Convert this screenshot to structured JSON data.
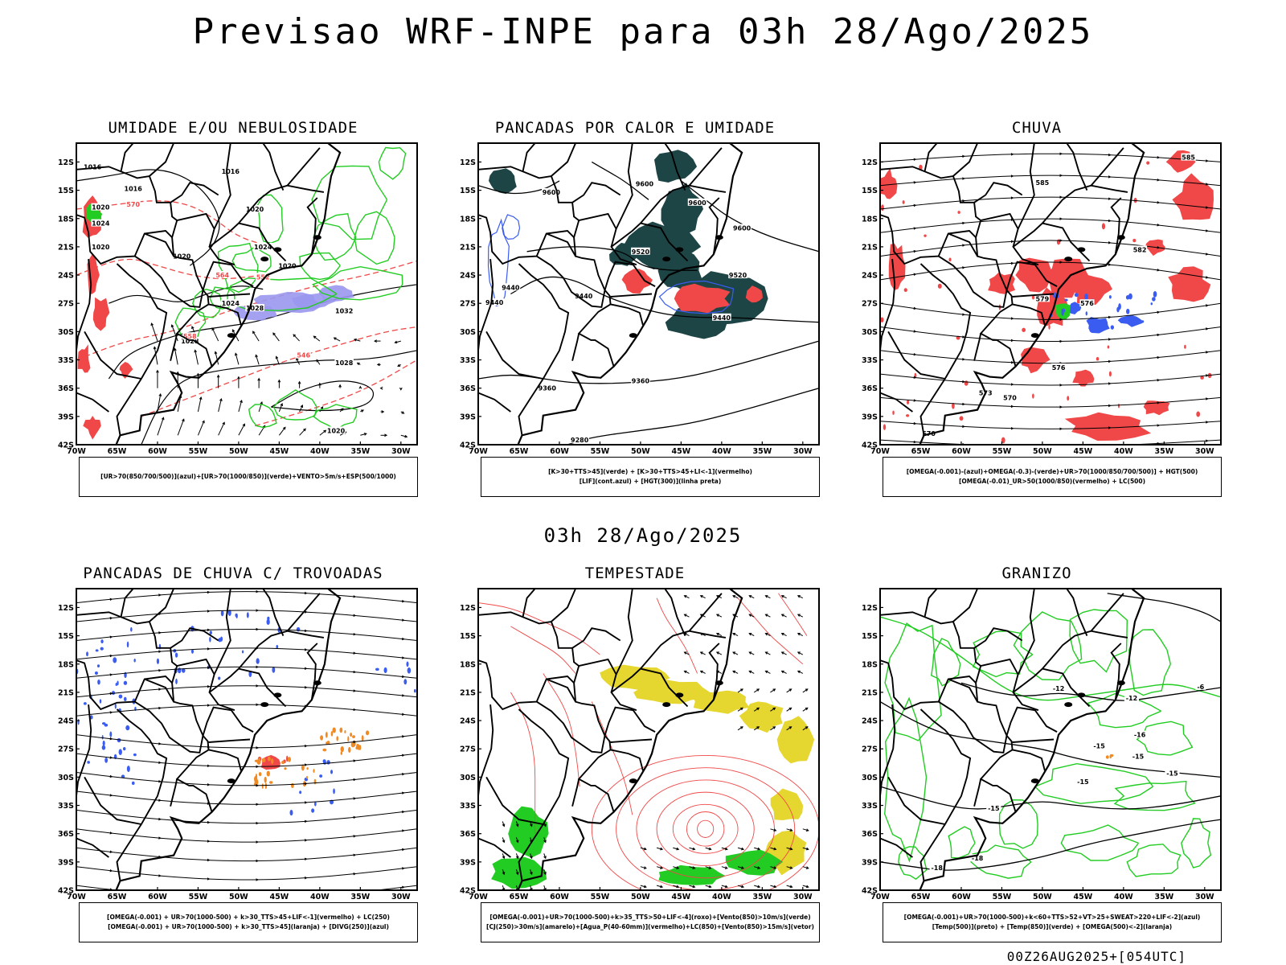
{
  "header": {
    "title": "Previsao WRF-INPE  para 03h 28/Ago/2025"
  },
  "middle": {
    "subtitle": "03h 28/Ago/2025"
  },
  "footer": {
    "run": "00Z26AUG2025+[054UTC]"
  },
  "colors": {
    "blue": "#3a5cf0",
    "green": "#22cc22",
    "red": "#f04848",
    "dark_teal": "#1e4546",
    "yellow": "#e6d630",
    "orange": "#f08a24",
    "lavender": "#9a98ee",
    "purple": "#8060d8"
  },
  "chart_data": [
    {
      "id": "umidade",
      "type": "map",
      "title": "UMIDADE E/OU NEBULOSIDADE",
      "xlim": [
        -70,
        -28
      ],
      "ylim": [
        -42,
        -10
      ],
      "x_ticks": [
        "70W",
        "65W",
        "60W",
        "55W",
        "50W",
        "45W",
        "40W",
        "35W",
        "30W"
      ],
      "y_ticks": [
        "12S",
        "15S",
        "18S",
        "21S",
        "24S",
        "27S",
        "30S",
        "33S",
        "36S",
        "39S",
        "42S"
      ],
      "legend": [
        "[UR>70(850/700/500)](azul)+[UR>70(1000/850)](verde)+VENTO>5m/s+ESP(500/1000)"
      ],
      "contour_labels": [
        "1016",
        "1016",
        "1020",
        "1024",
        "1020",
        "1020",
        "1016",
        "1020",
        "1024",
        "1020",
        "1024",
        "1028",
        "1028",
        "1032",
        "1028",
        "1020",
        "570",
        "564",
        "552",
        "558",
        "546"
      ]
    },
    {
      "id": "pancadas_calor",
      "type": "map",
      "title": "PANCADAS POR CALOR E UMIDADE",
      "xlim": [
        -70,
        -28
      ],
      "ylim": [
        -42,
        -10
      ],
      "x_ticks": [
        "70W",
        "65W",
        "60W",
        "55W",
        "50W",
        "45W",
        "40W",
        "35W",
        "30W"
      ],
      "y_ticks": [
        "12S",
        "15S",
        "18S",
        "21S",
        "24S",
        "27S",
        "30S",
        "33S",
        "36S",
        "39S",
        "42S"
      ],
      "legend": [
        "[K>30+TTS>45](verde) + [K>30+TTS>45+LI<-1](vermelho)",
        "[LIF](cont.azul) + [HGT(300)](linha preta)"
      ],
      "contour_labels": [
        "9600",
        "9600",
        "9600",
        "9600",
        "9520",
        "9520",
        "9440",
        "9440",
        "9440",
        "9440",
        "9360",
        "9360",
        "9280"
      ]
    },
    {
      "id": "chuva",
      "type": "map",
      "title": "CHUVA",
      "xlim": [
        -70,
        -28
      ],
      "ylim": [
        -42,
        -10
      ],
      "x_ticks": [
        "70W",
        "65W",
        "60W",
        "55W",
        "50W",
        "45W",
        "40W",
        "35W",
        "30W"
      ],
      "y_ticks": [
        "12S",
        "15S",
        "18S",
        "21S",
        "24S",
        "27S",
        "30S",
        "33S",
        "36S",
        "39S",
        "42S"
      ],
      "legend": [
        "[OMEGA(-0.001)-(azul)+OMEGA(-0.3)-(verde)+UR>70(1000/850/700/500)] + HGT(500)",
        "[OMEGA(-0.01)_UR>50(1000/850)(vermelho) + LC(500)"
      ],
      "contour_labels": [
        "585",
        "585",
        "582",
        "579",
        "576",
        "576",
        "573",
        "570",
        "570"
      ]
    },
    {
      "id": "trovoadas",
      "type": "map",
      "title": "PANCADAS DE CHUVA C/ TROVOADAS",
      "xlim": [
        -70,
        -28
      ],
      "ylim": [
        -42,
        -10
      ],
      "x_ticks": [
        "70W",
        "65W",
        "60W",
        "55W",
        "50W",
        "45W",
        "40W",
        "35W",
        "30W"
      ],
      "y_ticks": [
        "12S",
        "15S",
        "18S",
        "21S",
        "24S",
        "27S",
        "30S",
        "33S",
        "36S",
        "39S",
        "42S"
      ],
      "legend": [
        "[OMEGA(-0.001) + UR>70(1000-500) + k>30_TTS>45+LIF<-1](vermelho) + LC(250)",
        "[OMEGA(-0.001) + UR>70(1000-500) + k>30_TTS>45](laranja) + [DIVG(250)](azul)"
      ],
      "contour_labels": []
    },
    {
      "id": "tempestade",
      "type": "map",
      "title": "TEMPESTADE",
      "xlim": [
        -70,
        -28
      ],
      "ylim": [
        -42,
        -10
      ],
      "x_ticks": [
        "70W",
        "65W",
        "60W",
        "55W",
        "50W",
        "45W",
        "40W",
        "35W",
        "30W"
      ],
      "y_ticks": [
        "12S",
        "15S",
        "18S",
        "21S",
        "24S",
        "27S",
        "30S",
        "33S",
        "36S",
        "39S",
        "42S"
      ],
      "legend": [
        "[OMEGA(-0.001)+UR>70(1000-500)+k>35_TTS>50+LIF<-4](roxo)+[Vento(850)>10m/s](verde)",
        "[CJ(250)>30m/s](amarelo)+[Agua_P(40-60mm)](vermelho)+LC(850)+[Vento(850)>15m/s](vetor)"
      ],
      "contour_labels": []
    },
    {
      "id": "granizo",
      "type": "map",
      "title": "GRANIZO",
      "xlim": [
        -70,
        -28
      ],
      "ylim": [
        -42,
        -10
      ],
      "x_ticks": [
        "70W",
        "65W",
        "60W",
        "55W",
        "50W",
        "45W",
        "40W",
        "35W",
        "30W"
      ],
      "y_ticks": [
        "12S",
        "15S",
        "18S",
        "21S",
        "24S",
        "27S",
        "30S",
        "33S",
        "36S",
        "39S",
        "42S"
      ],
      "legend": [
        "[OMEGA(-0.001)+UR>70(1000-500)+k<60+TTS>52+VT>25+SWEAT>220+LIF<-2](azul)",
        "[Temp(500)](preto) + [Temp(850)](verde) + [OMEGA(500)<-2](laranja)"
      ],
      "contour_labels": [
        "-6",
        "-12",
        "-12",
        "-15",
        "-15",
        "-15",
        "-18",
        "-18",
        "-15",
        "-16",
        "-15"
      ]
    }
  ]
}
